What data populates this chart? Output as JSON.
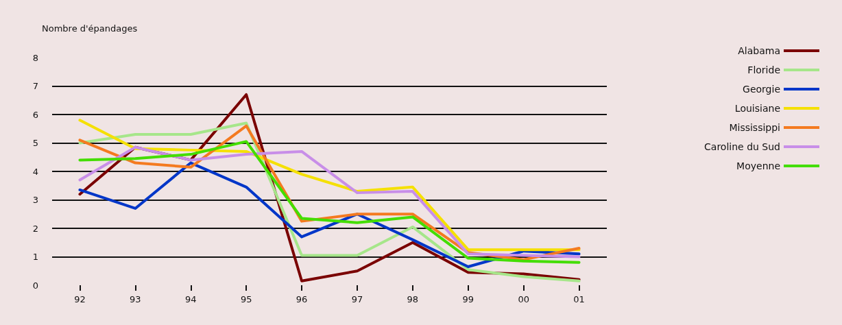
{
  "chart_data": {
    "type": "line",
    "ylabel": "Nombre d'épandages",
    "categories": [
      "92",
      "93",
      "94",
      "95",
      "96",
      "97",
      "98",
      "99",
      "00",
      "01"
    ],
    "series": [
      {
        "name": "Alabama",
        "color": "#7a0000",
        "values": [
          3.2,
          4.85,
          4.4,
          6.7,
          0.15,
          0.5,
          1.5,
          0.45,
          0.4,
          0.2
        ]
      },
      {
        "name": "Floride",
        "color": "#a6e68a",
        "values": [
          5.0,
          5.3,
          5.3,
          5.7,
          1.05,
          1.05,
          2.05,
          0.55,
          0.3,
          0.15
        ]
      },
      {
        "name": "Georgie",
        "color": "#0036c8",
        "values": [
          3.35,
          2.7,
          4.3,
          3.45,
          1.7,
          2.5,
          1.6,
          0.65,
          1.2,
          1.1
        ]
      },
      {
        "name": "Louisiane",
        "color": "#f5e000",
        "values": [
          5.8,
          4.8,
          4.75,
          4.7,
          3.9,
          3.3,
          3.45,
          1.25,
          1.25,
          1.25
        ]
      },
      {
        "name": "Mississippi",
        "color": "#f47a20",
        "values": [
          5.1,
          4.3,
          4.15,
          5.6,
          2.25,
          2.5,
          2.5,
          1.15,
          0.9,
          1.3
        ]
      },
      {
        "name": "Caroline du Sud",
        "color": "#c88ee8",
        "values": [
          3.7,
          4.85,
          4.4,
          4.6,
          4.7,
          3.25,
          3.3,
          1.1,
          1.05,
          1.0
        ]
      },
      {
        "name": "Moyenne",
        "color": "#44dd00",
        "values": [
          4.4,
          4.45,
          4.6,
          5.05,
          2.35,
          2.2,
          2.4,
          0.95,
          0.85,
          0.8
        ]
      }
    ],
    "ylim": [
      0,
      8
    ],
    "yticks": [
      0,
      1,
      2,
      3,
      4,
      5,
      6,
      7,
      8
    ],
    "grid": "y",
    "legend": "right",
    "marker": "none",
    "line_style": "solid"
  }
}
